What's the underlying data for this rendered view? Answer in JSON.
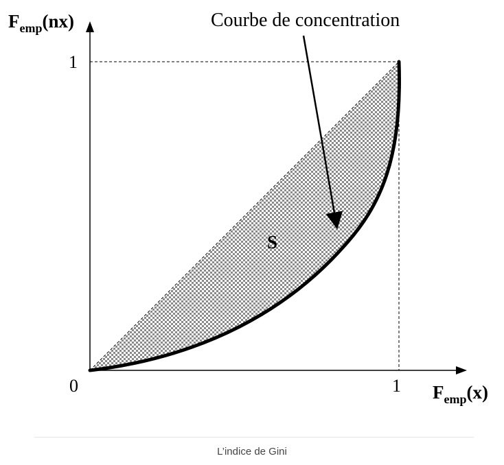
{
  "figure": {
    "y_axis_label": {
      "base": "F",
      "subscript": "emp",
      "rest": "(nx)"
    },
    "x_axis_label": {
      "base": "F",
      "subscript": "emp",
      "rest": "(x)"
    },
    "tick_origin": "0",
    "tick_x_one": "1",
    "tick_y_one": "1",
    "curve_annotation": "Courbe de concentration",
    "area_label": "S"
  },
  "caption": "L’indice de Gini",
  "colors": {
    "hatch": "#8a8a8a",
    "curve": "#000000",
    "caption_text": "#444444"
  }
}
